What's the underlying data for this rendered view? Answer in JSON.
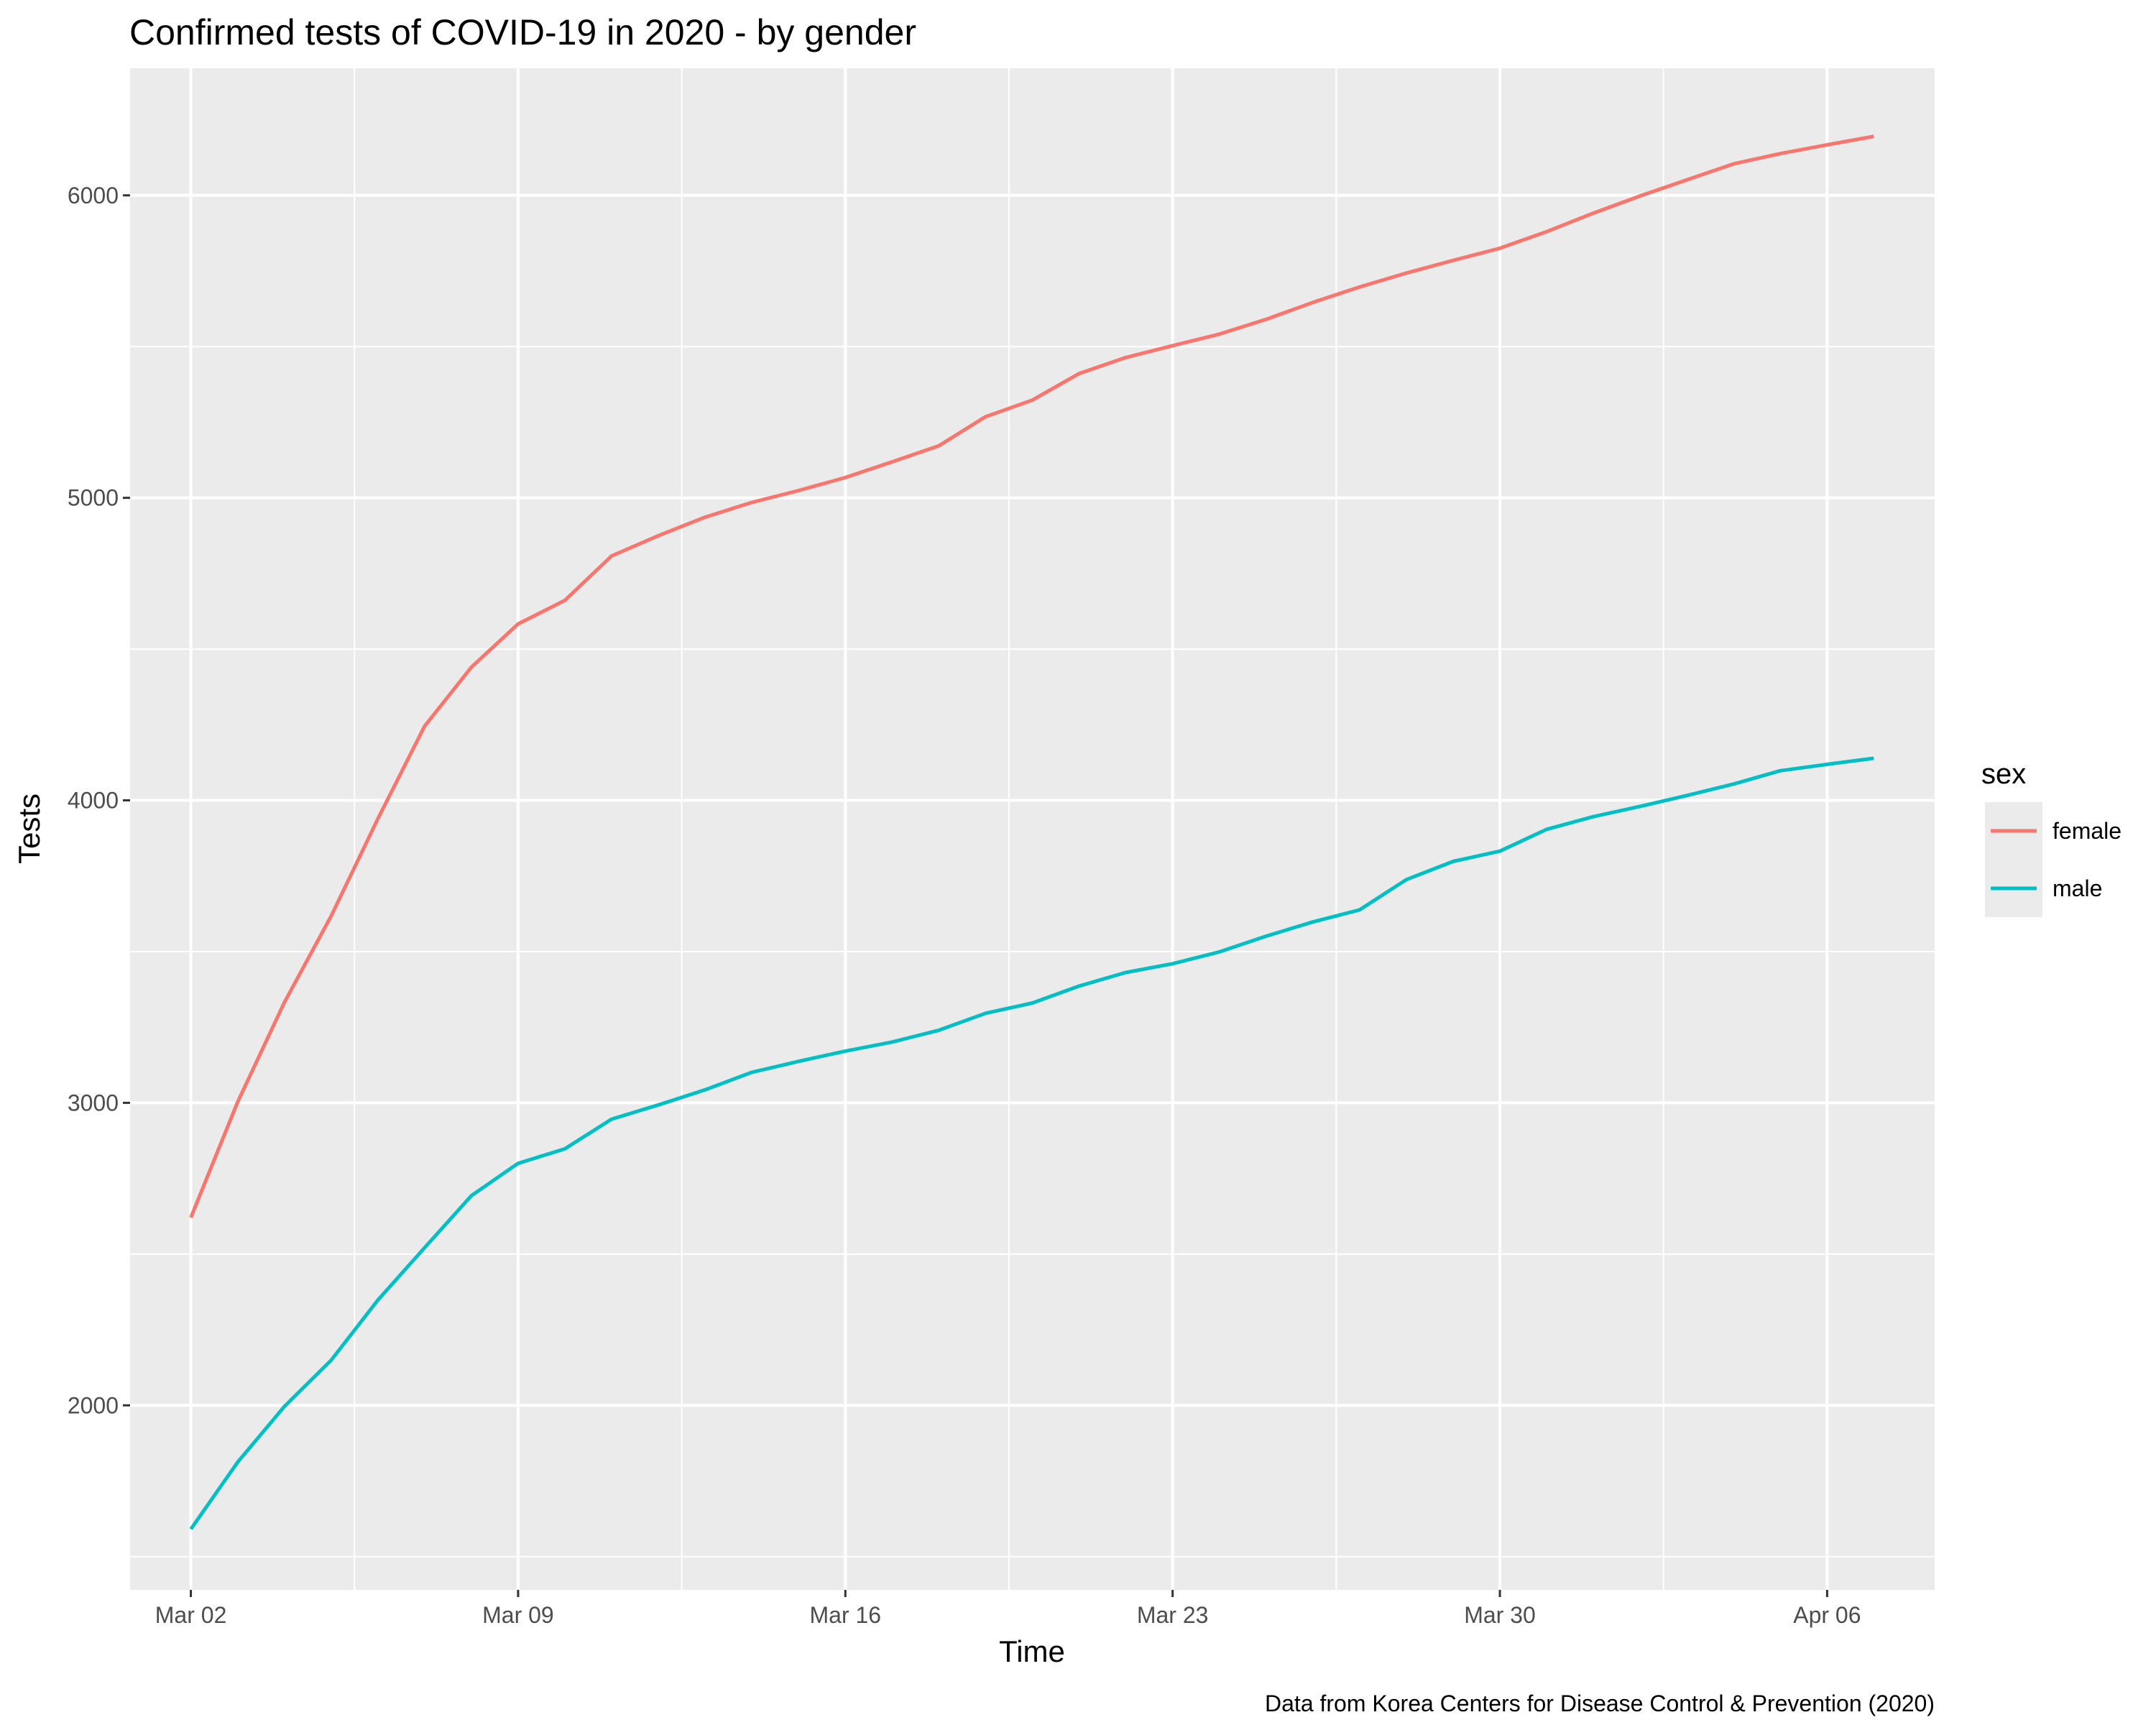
{
  "chart_data": {
    "type": "line",
    "title": "Confirmed tests of COVID-19 in 2020 - by gender",
    "xlabel": "Time",
    "ylabel": "Tests",
    "caption": "Data from Korea Centers for Disease Control & Prevention (2020)",
    "legend_title": "sex",
    "legend_position": "right",
    "grid": true,
    "ylim": [
      1390,
      6420
    ],
    "xlim": [
      "2020-03-00.7",
      "2020-04-08.3"
    ],
    "y_ticks": [
      2000,
      3000,
      4000,
      5000,
      6000
    ],
    "x_ticks": [
      {
        "date": "2020-03-02",
        "label": "Mar 02"
      },
      {
        "date": "2020-03-09",
        "label": "Mar 09"
      },
      {
        "date": "2020-03-16",
        "label": "Mar 16"
      },
      {
        "date": "2020-03-23",
        "label": "Mar 23"
      },
      {
        "date": "2020-03-30",
        "label": "Mar 30"
      },
      {
        "date": "2020-04-06",
        "label": "Apr 06"
      }
    ],
    "x": [
      "2020-03-02",
      "2020-03-03",
      "2020-03-04",
      "2020-03-05",
      "2020-03-06",
      "2020-03-07",
      "2020-03-08",
      "2020-03-09",
      "2020-03-10",
      "2020-03-11",
      "2020-03-12",
      "2020-03-13",
      "2020-03-14",
      "2020-03-15",
      "2020-03-16",
      "2020-03-17",
      "2020-03-18",
      "2020-03-19",
      "2020-03-20",
      "2020-03-21",
      "2020-03-22",
      "2020-03-23",
      "2020-03-24",
      "2020-03-25",
      "2020-03-26",
      "2020-03-27",
      "2020-03-28",
      "2020-03-29",
      "2020-03-30",
      "2020-03-31",
      "2020-04-01",
      "2020-04-02",
      "2020-04-03",
      "2020-04-04",
      "2020-04-05",
      "2020-04-06",
      "2020-04-07"
    ],
    "series": [
      {
        "name": "female",
        "color": "#F8766D",
        "values": [
          2621,
          3002,
          3332,
          3617,
          3939,
          4245,
          4440,
          4583,
          4661,
          4808,
          4875,
          4936,
          4985,
          5024,
          5067,
          5119,
          5172,
          5268,
          5323,
          5411,
          5464,
          5503,
          5541,
          5590,
          5646,
          5697,
          5743,
          5785,
          5825,
          5880,
          5941,
          5998,
          6051,
          6104,
          6138,
          6167,
          6195
        ]
      },
      {
        "name": "male",
        "color": "#00BFC4",
        "values": [
          1591,
          1812,
          1996,
          2149,
          2348,
          2521,
          2693,
          2800,
          2848,
          2946,
          2993,
          3043,
          3101,
          3137,
          3171,
          3201,
          3240,
          3296,
          3330,
          3386,
          3431,
          3460,
          3499,
          3551,
          3598,
          3638,
          3738,
          3798,
          3832,
          3904,
          3946,
          3980,
          4016,
          4054,
          4098,
          4119,
          4139
        ]
      }
    ]
  }
}
